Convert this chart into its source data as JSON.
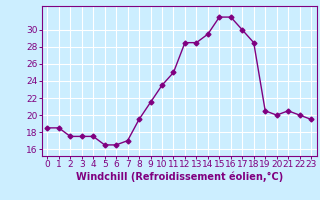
{
  "x": [
    0,
    1,
    2,
    3,
    4,
    5,
    6,
    7,
    8,
    9,
    10,
    11,
    12,
    13,
    14,
    15,
    16,
    17,
    18,
    19,
    20,
    21,
    22,
    23
  ],
  "y": [
    18.5,
    18.5,
    17.5,
    17.5,
    17.5,
    16.5,
    16.5,
    17.0,
    19.5,
    21.5,
    23.5,
    25.0,
    28.5,
    28.5,
    29.5,
    31.5,
    31.5,
    30.0,
    28.5,
    20.5,
    20.0,
    20.5,
    20.0,
    19.5
  ],
  "line_color": "#800080",
  "marker": "D",
  "marker_size": 2.5,
  "bg_color": "#cceeff",
  "xlabel": "Windchill (Refroidissement éolien,°C)",
  "xlabel_fontsize": 7,
  "yticks": [
    16,
    18,
    20,
    22,
    24,
    26,
    28,
    30
  ],
  "xticks": [
    0,
    1,
    2,
    3,
    4,
    5,
    6,
    7,
    8,
    9,
    10,
    11,
    12,
    13,
    14,
    15,
    16,
    17,
    18,
    19,
    20,
    21,
    22,
    23
  ],
  "ylim": [
    15.2,
    32.8
  ],
  "xlim": [
    -0.5,
    23.5
  ],
  "grid_color": "#ffffff",
  "tick_color": "#800080",
  "tick_fontsize": 6.5,
  "line_width": 1.0
}
